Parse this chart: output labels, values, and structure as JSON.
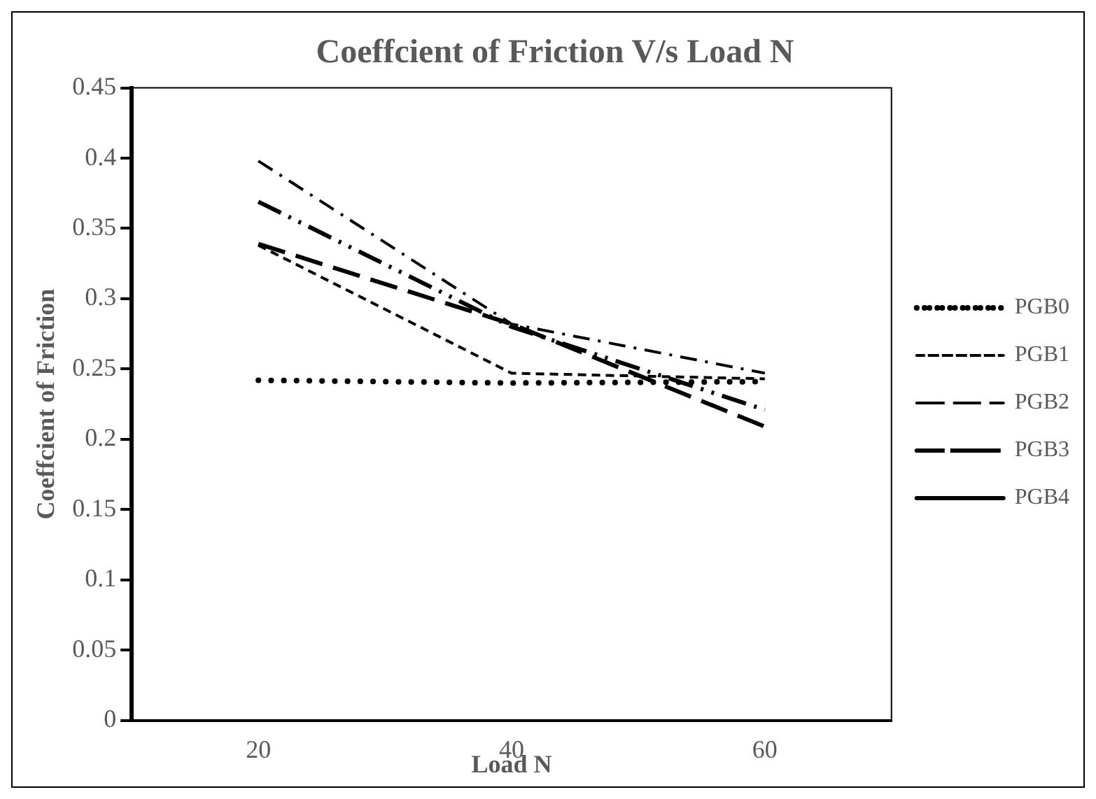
{
  "chart_data": {
    "type": "line",
    "title": "Coeffcient of Friction V/s Load N",
    "xlabel": "Load N",
    "ylabel": "Coeffcient of Friction",
    "x": [
      20,
      40,
      60
    ],
    "xlim": [
      10,
      70
    ],
    "xticks": [
      20,
      40,
      60
    ],
    "ylim": [
      0,
      0.45
    ],
    "yticks": [
      0,
      0.05,
      0.1,
      0.15,
      0.2,
      0.25,
      0.3,
      0.35,
      0.4,
      0.45
    ],
    "grid": false,
    "legend": "right",
    "marker": "none",
    "series": [
      {
        "name": "PGB0",
        "color": "#000000",
        "line_style": "dotted",
        "values": [
          0.242,
          0.24,
          0.241
        ]
      },
      {
        "name": "PGB1",
        "color": "#000000",
        "line_style": "dashed",
        "values": [
          0.338,
          0.247,
          0.243
        ]
      },
      {
        "name": "PGB2",
        "color": "#000000",
        "line_style": "dashdot",
        "values": [
          0.398,
          0.282,
          0.247
        ]
      },
      {
        "name": "PGB3",
        "color": "#000000",
        "line_style": "longdashdotdot",
        "values": [
          0.369,
          0.28,
          0.221
        ]
      },
      {
        "name": "PGB4",
        "color": "#000000",
        "line_style": "longdash",
        "values": [
          0.339,
          0.282,
          0.209
        ]
      }
    ]
  }
}
